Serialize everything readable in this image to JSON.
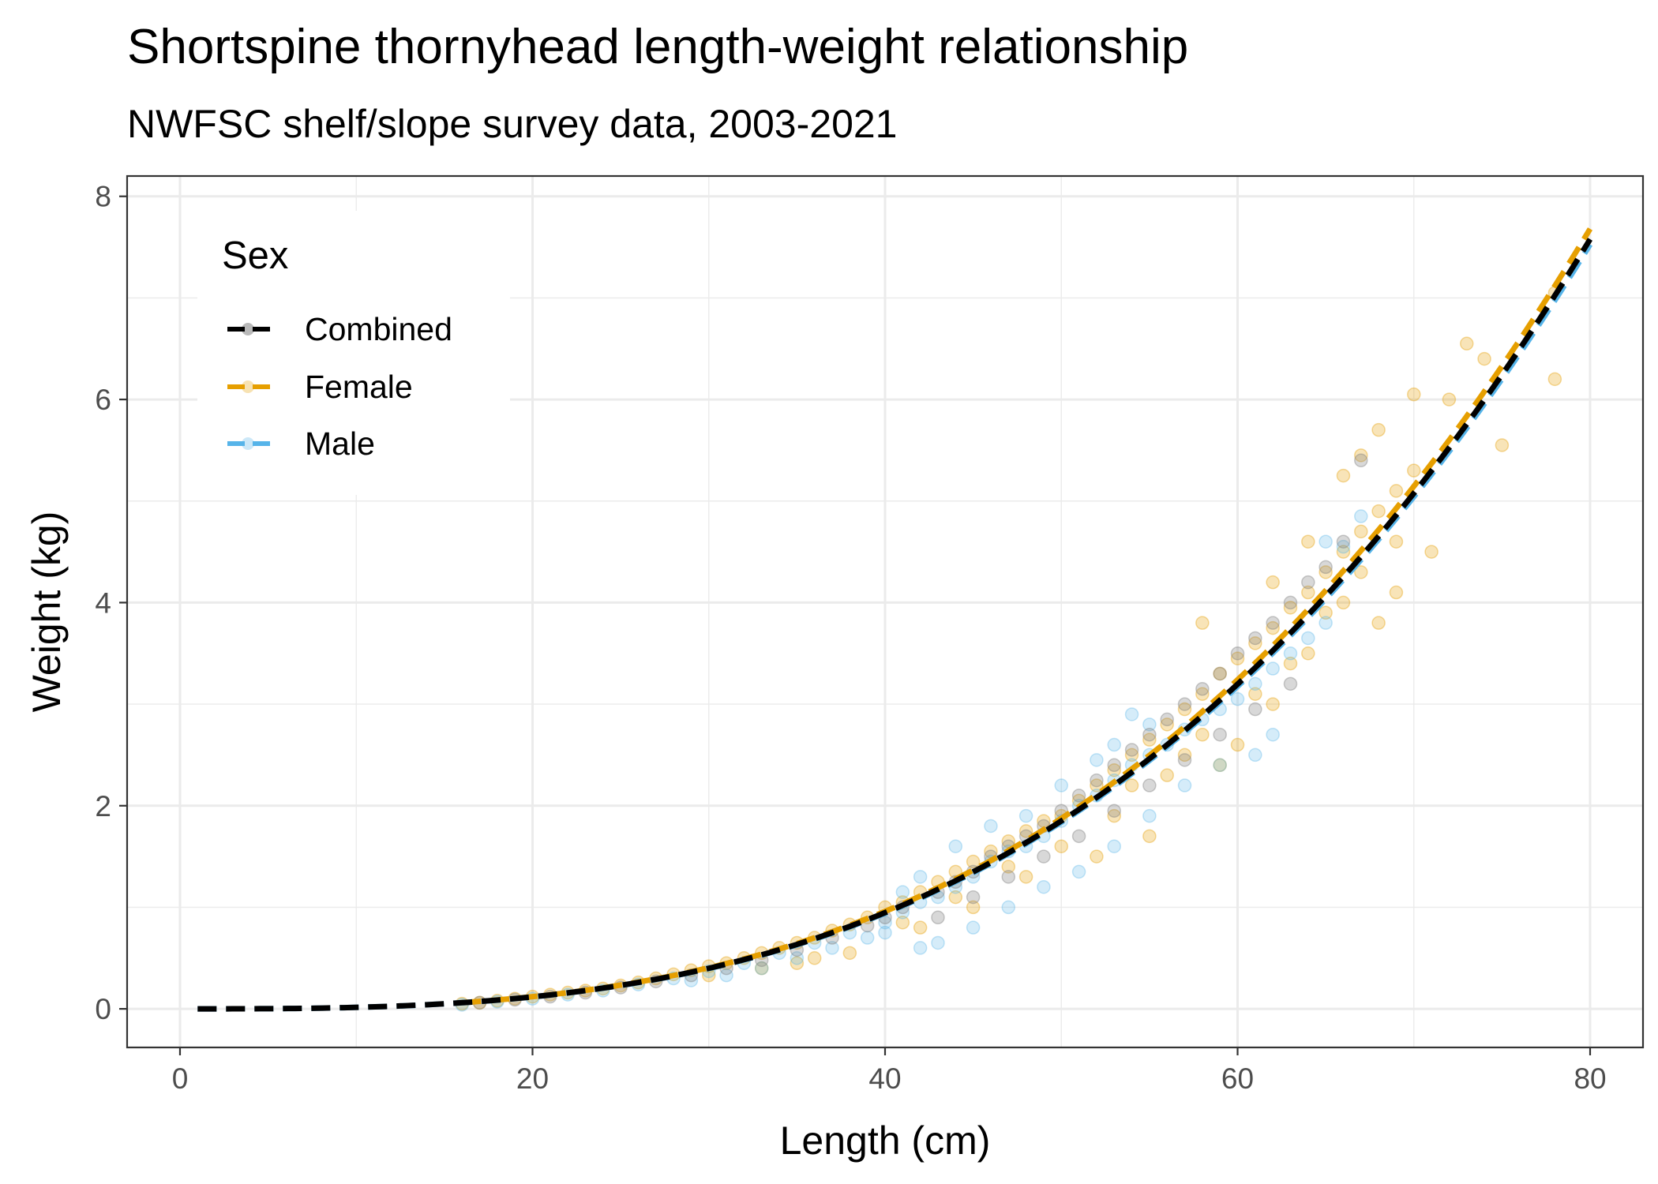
{
  "chart_data": {
    "type": "scatter",
    "title": "Shortspine thornyhead length-weight relationship",
    "subtitle": "NWFSC shelf/slope survey data, 2003-2021",
    "xlabel": "Length (cm)",
    "ylabel": "Weight (kg)",
    "xlim": [
      -3,
      83
    ],
    "ylim": [
      -0.38,
      8.2
    ],
    "x_ticks": [
      0,
      20,
      40,
      60,
      80
    ],
    "y_ticks": [
      0,
      2,
      4,
      6,
      8
    ],
    "grid": true,
    "legend": {
      "title": "Sex",
      "placement": "top-left",
      "entries": [
        "Combined",
        "Female",
        "Male"
      ]
    },
    "colors": {
      "Combined": "#000000",
      "Female": "#E69F00",
      "Male": "#56B4E9"
    },
    "fit_curves": [
      {
        "name": "Combined",
        "a": 1.48e-05,
        "b": 3.0,
        "x_range": [
          1,
          80
        ],
        "style": "dashed"
      },
      {
        "name": "Female",
        "a": 1.5e-05,
        "b": 3.0,
        "x_range": [
          16,
          80
        ],
        "style": "dashed"
      },
      {
        "name": "Male",
        "a": 1.47e-05,
        "b": 3.0,
        "x_range": [
          1,
          80
        ],
        "style": "dashed"
      }
    ],
    "points": {
      "Female": [
        [
          16,
          0.05
        ],
        [
          17,
          0.06
        ],
        [
          18,
          0.08
        ],
        [
          19,
          0.1
        ],
        [
          20,
          0.12
        ],
        [
          21,
          0.14
        ],
        [
          22,
          0.16
        ],
        [
          23,
          0.18
        ],
        [
          24,
          0.2
        ],
        [
          25,
          0.23
        ],
        [
          26,
          0.26
        ],
        [
          27,
          0.3
        ],
        [
          28,
          0.34
        ],
        [
          29,
          0.38
        ],
        [
          30,
          0.42
        ],
        [
          31,
          0.45
        ],
        [
          32,
          0.5
        ],
        [
          33,
          0.55
        ],
        [
          34,
          0.6
        ],
        [
          35,
          0.65
        ],
        [
          36,
          0.7
        ],
        [
          37,
          0.77
        ],
        [
          38,
          0.83
        ],
        [
          39,
          0.9
        ],
        [
          40,
          1.0
        ],
        [
          41,
          1.05
        ],
        [
          42,
          1.15
        ],
        [
          43,
          1.25
        ],
        [
          44,
          1.35
        ],
        [
          45,
          1.45
        ],
        [
          46,
          1.55
        ],
        [
          47,
          1.65
        ],
        [
          48,
          1.75
        ],
        [
          49,
          1.85
        ],
        [
          50,
          1.9
        ],
        [
          51,
          2.05
        ],
        [
          52,
          2.2
        ],
        [
          53,
          2.35
        ],
        [
          54,
          2.5
        ],
        [
          55,
          2.65
        ],
        [
          56,
          2.8
        ],
        [
          57,
          2.95
        ],
        [
          58,
          3.1
        ],
        [
          59,
          3.3
        ],
        [
          60,
          3.45
        ],
        [
          61,
          3.6
        ],
        [
          62,
          3.75
        ],
        [
          63,
          3.95
        ],
        [
          64,
          4.1
        ],
        [
          65,
          4.3
        ],
        [
          66,
          4.5
        ],
        [
          67,
          4.7
        ],
        [
          68,
          4.9
        ],
        [
          69,
          5.1
        ],
        [
          70,
          5.3
        ],
        [
          71,
          4.5
        ],
        [
          72,
          6.0
        ],
        [
          73,
          6.55
        ],
        [
          74,
          6.4
        ],
        [
          75,
          5.55
        ],
        [
          78,
          6.2
        ],
        [
          78,
          7.05
        ],
        [
          66,
          5.25
        ],
        [
          67,
          5.45
        ],
        [
          68,
          5.7
        ],
        [
          70,
          6.05
        ],
        [
          69,
          4.1
        ],
        [
          68,
          3.8
        ],
        [
          58,
          3.8
        ],
        [
          59,
          2.4
        ],
        [
          55,
          1.7
        ],
        [
          52,
          1.5
        ],
        [
          48,
          1.3
        ],
        [
          45,
          1.0
        ],
        [
          42,
          0.8
        ],
        [
          38,
          0.55
        ],
        [
          35,
          0.45
        ],
        [
          56,
          2.3
        ],
        [
          60,
          2.6
        ],
        [
          62,
          3.0
        ],
        [
          64,
          3.5
        ],
        [
          57,
          2.5
        ],
        [
          53,
          1.9
        ],
        [
          50,
          1.6
        ],
        [
          47,
          1.4
        ],
        [
          44,
          1.1
        ],
        [
          41,
          0.85
        ],
        [
          36,
          0.5
        ],
        [
          33,
          0.4
        ],
        [
          30,
          0.33
        ],
        [
          54,
          2.2
        ],
        [
          58,
          2.7
        ],
        [
          61,
          3.1
        ],
        [
          63,
          3.4
        ],
        [
          65,
          3.9
        ],
        [
          66,
          4.0
        ],
        [
          67,
          4.3
        ],
        [
          69,
          4.6
        ],
        [
          64,
          4.6
        ],
        [
          62,
          4.2
        ]
      ],
      "Male": [
        [
          16,
          0.04
        ],
        [
          18,
          0.07
        ],
        [
          20,
          0.1
        ],
        [
          22,
          0.14
        ],
        [
          24,
          0.18
        ],
        [
          26,
          0.24
        ],
        [
          28,
          0.3
        ],
        [
          30,
          0.37
        ],
        [
          32,
          0.45
        ],
        [
          34,
          0.55
        ],
        [
          36,
          0.65
        ],
        [
          38,
          0.75
        ],
        [
          40,
          0.85
        ],
        [
          41,
          0.95
        ],
        [
          42,
          1.05
        ],
        [
          43,
          1.1
        ],
        [
          44,
          1.2
        ],
        [
          45,
          1.3
        ],
        [
          46,
          1.45
        ],
        [
          47,
          1.55
        ],
        [
          48,
          1.6
        ],
        [
          49,
          1.7
        ],
        [
          50,
          1.85
        ],
        [
          51,
          2.0
        ],
        [
          52,
          2.1
        ],
        [
          53,
          2.25
        ],
        [
          54,
          2.4
        ],
        [
          55,
          2.5
        ],
        [
          56,
          2.6
        ],
        [
          57,
          2.75
        ],
        [
          58,
          2.85
        ],
        [
          59,
          2.95
        ],
        [
          60,
          3.05
        ],
        [
          61,
          3.2
        ],
        [
          62,
          3.35
        ],
        [
          63,
          3.5
        ],
        [
          64,
          3.65
        ],
        [
          65,
          3.8
        ],
        [
          67,
          4.85
        ],
        [
          66,
          4.55
        ],
        [
          65,
          4.6
        ],
        [
          62,
          2.7
        ],
        [
          61,
          2.5
        ],
        [
          54,
          2.9
        ],
        [
          55,
          2.8
        ],
        [
          53,
          2.6
        ],
        [
          52,
          2.45
        ],
        [
          50,
          2.2
        ],
        [
          48,
          1.9
        ],
        [
          46,
          1.8
        ],
        [
          44,
          1.6
        ],
        [
          42,
          1.3
        ],
        [
          41,
          1.15
        ],
        [
          40,
          0.75
        ],
        [
          42,
          0.6
        ],
        [
          43,
          0.65
        ],
        [
          45,
          0.8
        ],
        [
          47,
          1.0
        ],
        [
          49,
          1.2
        ],
        [
          51,
          1.35
        ],
        [
          53,
          1.6
        ],
        [
          55,
          1.9
        ],
        [
          57,
          2.2
        ],
        [
          59,
          2.4
        ],
        [
          39,
          0.7
        ],
        [
          37,
          0.6
        ],
        [
          35,
          0.5
        ],
        [
          33,
          0.4
        ],
        [
          31,
          0.33
        ],
        [
          29,
          0.28
        ]
      ],
      "Combined": [
        [
          17,
          0.06
        ],
        [
          19,
          0.09
        ],
        [
          21,
          0.12
        ],
        [
          23,
          0.16
        ],
        [
          25,
          0.21
        ],
        [
          27,
          0.27
        ],
        [
          29,
          0.33
        ],
        [
          31,
          0.4
        ],
        [
          33,
          0.48
        ],
        [
          35,
          0.58
        ],
        [
          37,
          0.7
        ],
        [
          39,
          0.82
        ],
        [
          40,
          0.9
        ],
        [
          41,
          1.0
        ],
        [
          43,
          1.15
        ],
        [
          44,
          1.25
        ],
        [
          45,
          1.35
        ],
        [
          46,
          1.5
        ],
        [
          47,
          1.6
        ],
        [
          48,
          1.7
        ],
        [
          49,
          1.8
        ],
        [
          50,
          1.95
        ],
        [
          51,
          2.1
        ],
        [
          52,
          2.25
        ],
        [
          53,
          2.4
        ],
        [
          54,
          2.55
        ],
        [
          55,
          2.7
        ],
        [
          56,
          2.85
        ],
        [
          57,
          3.0
        ],
        [
          58,
          3.15
        ],
        [
          59,
          3.3
        ],
        [
          60,
          3.5
        ],
        [
          61,
          3.65
        ],
        [
          62,
          3.8
        ],
        [
          63,
          4.0
        ],
        [
          64,
          4.2
        ],
        [
          65,
          4.35
        ],
        [
          66,
          4.6
        ],
        [
          67,
          5.4
        ],
        [
          43,
          0.9
        ],
        [
          45,
          1.1
        ],
        [
          47,
          1.3
        ],
        [
          49,
          1.5
        ],
        [
          51,
          1.7
        ],
        [
          53,
          1.95
        ],
        [
          55,
          2.2
        ],
        [
          57,
          2.45
        ],
        [
          59,
          2.7
        ],
        [
          61,
          2.95
        ],
        [
          63,
          3.2
        ]
      ]
    }
  }
}
